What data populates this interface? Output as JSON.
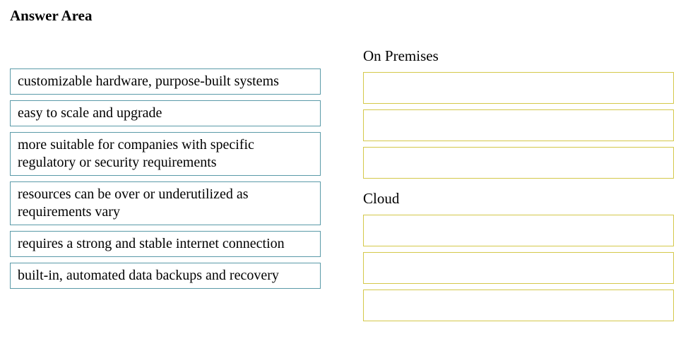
{
  "title": "Answer Area",
  "source_items": [
    {
      "text": "customizable hardware, purpose-built systems"
    },
    {
      "text": "easy to scale and upgrade"
    },
    {
      "text": "more suitable for companies with specific regulatory or security requirements"
    },
    {
      "text": "resources can be over or underutilized as requirements vary"
    },
    {
      "text": "requires a strong and stable internet connection"
    },
    {
      "text": "built-in, automated data backups and recovery"
    }
  ],
  "categories": {
    "on_premises": {
      "label": "On Premises",
      "slot_count": 3
    },
    "cloud": {
      "label": "Cloud",
      "slot_count": 3
    }
  },
  "styles": {
    "source_border_color": "#5a9aa8",
    "target_border_color": "#d4c84a",
    "background_color": "#ffffff",
    "font_family": "Times New Roman",
    "title_fontsize": 21,
    "body_fontsize": 20
  }
}
